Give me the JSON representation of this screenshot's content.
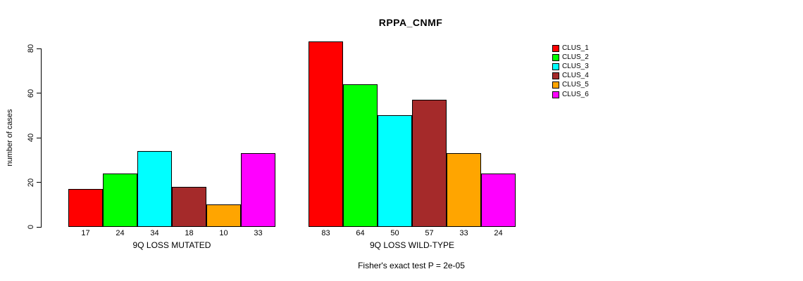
{
  "chart_data": {
    "type": "bar",
    "title": "RPPA_CNMF",
    "ylabel": "number of cases",
    "xlabel": "",
    "categories": [
      "9Q LOSS MUTATED",
      "9Q LOSS WILD-TYPE"
    ],
    "series": [
      {
        "name": "CLUS_1",
        "color": "#FF0000",
        "values": [
          17,
          83
        ]
      },
      {
        "name": "CLUS_2",
        "color": "#00FF00",
        "values": [
          24,
          64
        ]
      },
      {
        "name": "CLUS_3",
        "color": "#00FFFF",
        "values": [
          34,
          50
        ]
      },
      {
        "name": "CLUS_4",
        "color": "#A52A2A",
        "values": [
          18,
          57
        ]
      },
      {
        "name": "CLUS_5",
        "color": "#FFA500",
        "values": [
          10,
          33
        ]
      },
      {
        "name": "CLUS_6",
        "color": "#FF00FF",
        "values": [
          33,
          24
        ]
      }
    ],
    "yticks": [
      0,
      20,
      40,
      60,
      80
    ],
    "ylim": [
      0,
      89
    ],
    "grid": false,
    "bar_value_labels_shown": true,
    "legend_position": "right-outside",
    "annotation": "Fisher's exact test P = 2e-05"
  }
}
